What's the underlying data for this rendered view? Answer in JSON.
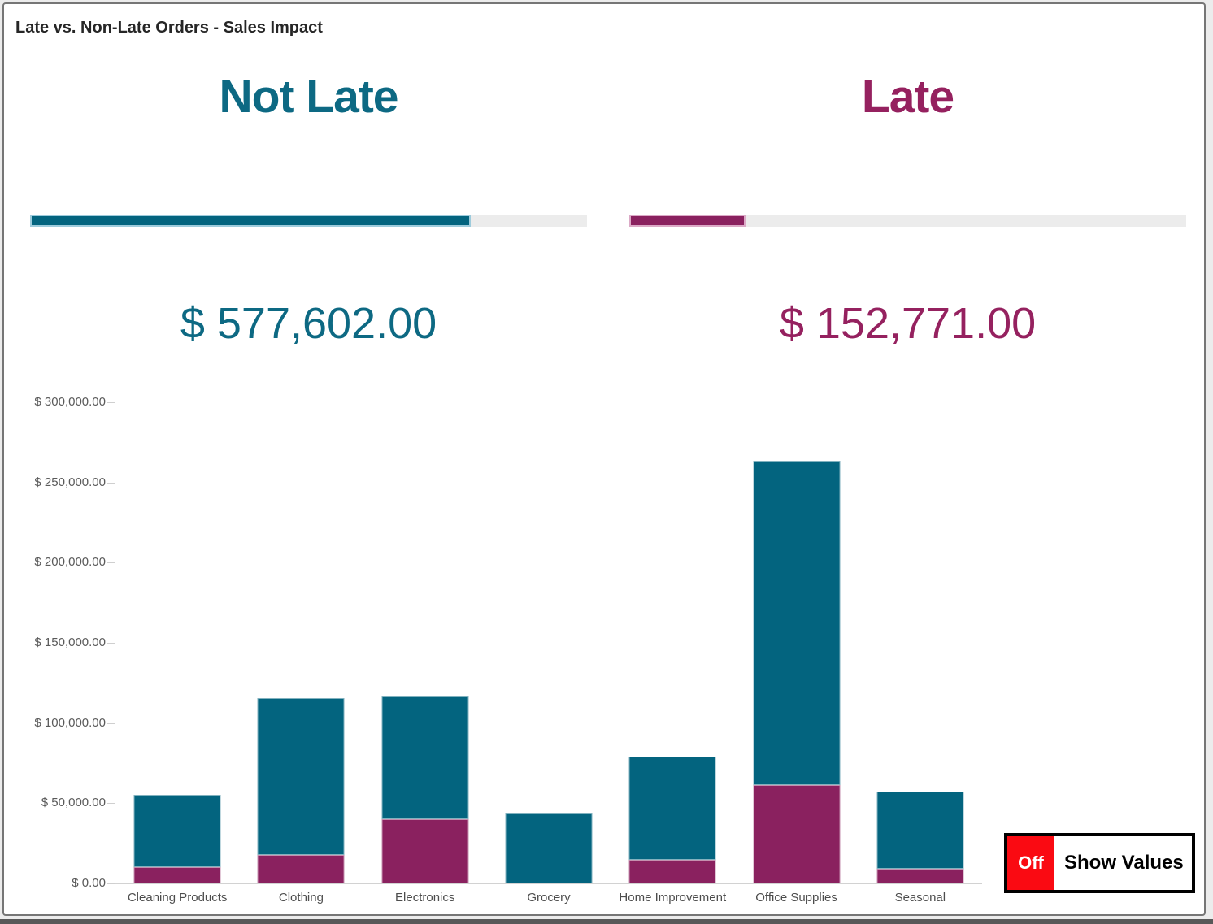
{
  "window_title": "Late vs. Non-Late Orders - Sales Impact",
  "colors": {
    "not_late_text": "#0d6983",
    "not_late_bar": "#03647f",
    "late_text": "#95215f",
    "late_bar": "#8a215f",
    "progress_track": "#ececec",
    "toggle_state_bg": "#fa0a12"
  },
  "kpis": [
    {
      "label": "Not Late",
      "value": "$ 577,602.00",
      "progress_pct": 79.1,
      "bar_color": "#03647f"
    },
    {
      "label": "Late",
      "value": "$ 152,771.00",
      "progress_pct": 20.9,
      "bar_color": "#8a215f"
    }
  ],
  "toggle": {
    "state": "Off",
    "label": "Show Values",
    "state_color": "#fa0a12"
  },
  "chart_data": {
    "type": "bar",
    "stacked": true,
    "title": "",
    "xlabel": "",
    "ylabel": "",
    "legend": "none",
    "grid": false,
    "ylim": [
      0,
      300000
    ],
    "categories": [
      "Cleaning Products",
      "Clothing",
      "Electronics",
      "Grocery",
      "Home Improvement",
      "Office Supplies",
      "Seasonal"
    ],
    "series": [
      {
        "name": "Late",
        "color": "#8a215f",
        "values": [
          10000,
          17500,
          40000,
          0,
          14500,
          61500,
          9250
        ]
      },
      {
        "name": "Not Late",
        "color": "#03647f",
        "values": [
          45000,
          98000,
          76500,
          43500,
          64500,
          202000,
          48100
        ]
      }
    ],
    "yticks": [
      {
        "value": 0,
        "label": "$ 0.00"
      },
      {
        "value": 50000,
        "label": "$ 50,000.00"
      },
      {
        "value": 100000,
        "label": "$ 100,000.00"
      },
      {
        "value": 150000,
        "label": "$ 150,000.00"
      },
      {
        "value": 200000,
        "label": "$ 200,000.00"
      },
      {
        "value": 250000,
        "label": "$ 250,000.00"
      },
      {
        "value": 300000,
        "label": "$ 300,000.00"
      }
    ]
  }
}
